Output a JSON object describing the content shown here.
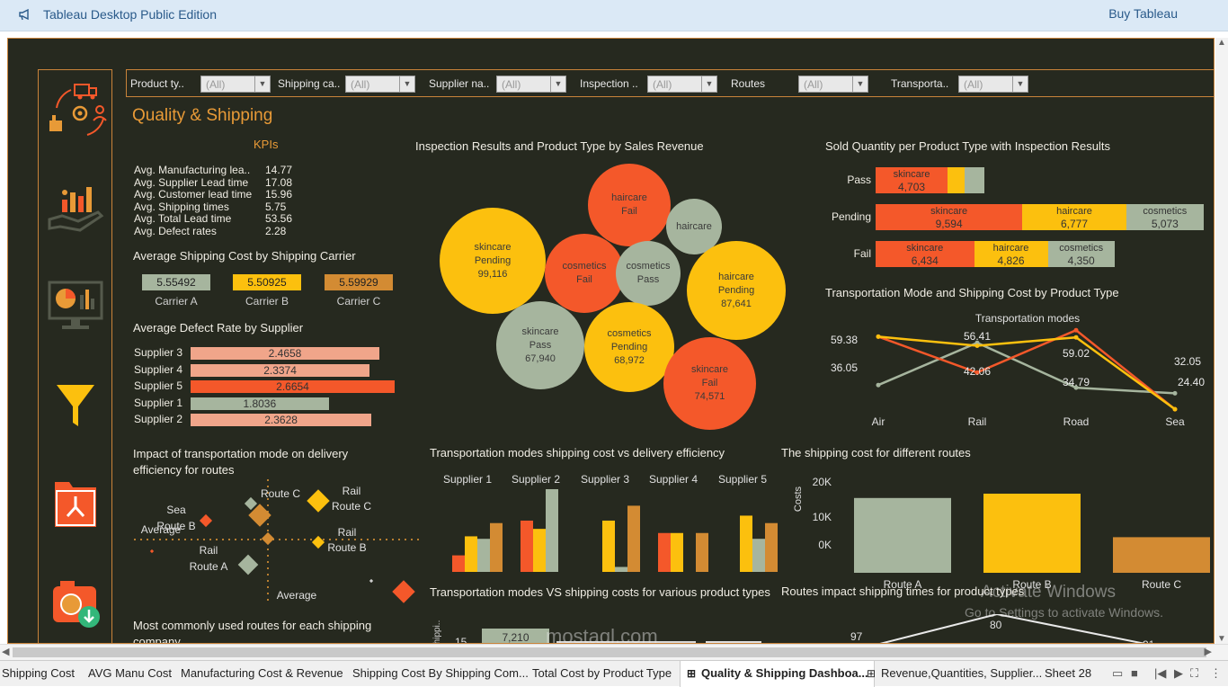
{
  "app": {
    "title": "Tableau Desktop Public Edition",
    "buy": "Buy Tableau"
  },
  "filters": [
    {
      "label": "Product ty..",
      "value": "(All)"
    },
    {
      "label": "Shipping ca..",
      "value": "(All)"
    },
    {
      "label": "Supplier na..",
      "value": "(All)"
    },
    {
      "label": "Inspection ..",
      "value": "(All)"
    },
    {
      "label": "Routes",
      "value": "(All)"
    },
    {
      "label": "Transporta..",
      "value": "(All)"
    }
  ],
  "dashboard": {
    "title": "Quality & Shipping",
    "kpis_header": "KPIs",
    "kpis": [
      {
        "label": "Avg. Manufacturing lea..",
        "value": "14.77"
      },
      {
        "label": "Avg. Supplier Lead time",
        "value": "17.08"
      },
      {
        "label": "Avg. Customer lead time",
        "value": "15.96"
      },
      {
        "label": "Avg. Shipping times",
        "value": "5.75"
      },
      {
        "label": "Avg. Total Lead time",
        "value": "53.56"
      },
      {
        "label": "Avg. Defect rates",
        "value": "2.28"
      }
    ]
  },
  "colors": {
    "bg": "#26291f",
    "orange": "#e89a37",
    "sage": "#a6b59e",
    "yellow": "#fcc00e",
    "red": "#f4582a",
    "tan": "#d38b33",
    "salmon": "#f0a58a"
  },
  "carrier_cost": {
    "title": "Average Shipping Cost by Shipping Carrier",
    "items": [
      {
        "name": "Carrier A",
        "value": "5.55492",
        "color": "#a6b59e"
      },
      {
        "name": "Carrier B",
        "value": "5.50925",
        "color": "#fcc00e"
      },
      {
        "name": "Carrier C",
        "value": "5.59929",
        "color": "#d38b33"
      }
    ]
  },
  "defect_rate": {
    "title": "Average Defect Rate by Supplier",
    "items": [
      {
        "name": "Supplier 3",
        "value": 2.4658,
        "label": "2.4658",
        "color": "#f0a58a"
      },
      {
        "name": "Supplier 4",
        "value": 2.3374,
        "label": "2.3374",
        "color": "#f0a58a"
      },
      {
        "name": "Supplier 5",
        "value": 2.6654,
        "label": "2.6654",
        "color": "#f4582a"
      },
      {
        "name": "Supplier 1",
        "value": 1.8036,
        "label": "1.8036",
        "color": "#a6b59e"
      },
      {
        "name": "Supplier 2",
        "value": 2.3628,
        "label": "2.3628",
        "color": "#f0a58a"
      }
    ]
  },
  "bubbles": {
    "title": "Inspection Results and Product Type by Sales Revenue",
    "items": [
      {
        "product": "haircare",
        "result": "Fail",
        "value": "",
        "color": "#f4582a"
      },
      {
        "product": "haircare",
        "result": "",
        "value": "",
        "color": "#a6b59e"
      },
      {
        "product": "skincare",
        "result": "Pending",
        "value": "99,116",
        "color": "#fcc00e"
      },
      {
        "product": "cosmetics",
        "result": "Fail",
        "value": "",
        "color": "#f4582a"
      },
      {
        "product": "cosmetics",
        "result": "Pass",
        "value": "",
        "color": "#a6b59e"
      },
      {
        "product": "haircare",
        "result": "Pending",
        "value": "87,641",
        "color": "#fcc00e"
      },
      {
        "product": "skincare",
        "result": "Pass",
        "value": "67,940",
        "color": "#a6b59e"
      },
      {
        "product": "cosmetics",
        "result": "Pending",
        "value": "68,972",
        "color": "#fcc00e"
      },
      {
        "product": "skincare",
        "result": "Fail",
        "value": "74,571",
        "color": "#f4582a"
      }
    ]
  },
  "sold_quantity": {
    "title": "Sold Quantity per Product Type with Inspection Results",
    "rows": [
      {
        "label": "Pass",
        "segments": [
          {
            "name": "skincare",
            "value": "4,703",
            "qty": 4703,
            "color": "#f4582a"
          },
          {
            "name": "",
            "value": "",
            "qty": 1100,
            "color": "#fcc00e"
          },
          {
            "name": "",
            "value": "",
            "qty": 1300,
            "color": "#a6b59e"
          }
        ]
      },
      {
        "label": "Pending",
        "segments": [
          {
            "name": "skincare",
            "value": "9,594",
            "qty": 9594,
            "color": "#f4582a"
          },
          {
            "name": "haircare",
            "value": "6,777",
            "qty": 6777,
            "color": "#fcc00e"
          },
          {
            "name": "cosmetics",
            "value": "5,073",
            "qty": 5073,
            "color": "#a6b59e"
          }
        ]
      },
      {
        "label": "Fail",
        "segments": [
          {
            "name": "skincare",
            "value": "6,434",
            "qty": 6434,
            "color": "#f4582a"
          },
          {
            "name": "haircare",
            "value": "4,826",
            "qty": 4826,
            "color": "#fcc00e"
          },
          {
            "name": "cosmetics",
            "value": "4,350",
            "qty": 4350,
            "color": "#a6b59e"
          }
        ]
      }
    ]
  },
  "chart_data": [
    {
      "type": "line",
      "title": "Transportation Mode and Shipping Cost by Product Type",
      "subtitle": "Transportation modes",
      "categories": [
        "Air",
        "Rail",
        "Road",
        "Sea"
      ],
      "series": [
        {
          "name": "",
          "color": "#a6b59e",
          "values": [
            36.05,
            56.41,
            34.79,
            32.05
          ]
        },
        {
          "name": "",
          "color": "#f4582a",
          "values": [
            59.38,
            42.06,
            62.5,
            24.4
          ]
        },
        {
          "name": "",
          "color": "#fcc00e",
          "values": [
            59.38,
            55.0,
            59.02,
            24.4
          ]
        }
      ],
      "labels": [
        "59.38",
        "36.05",
        "56.41",
        "42.06",
        "59.02",
        "34.79",
        "32.05",
        "24.40"
      ]
    },
    {
      "type": "scatter",
      "title": "Impact of transportation mode on delivery efficiency for routes",
      "annotations": [
        "Sea",
        "Route B",
        "Average",
        "Route C",
        "Rail",
        "Route C",
        "Rail",
        "Route B",
        "Rail",
        "Route A",
        "Average"
      ]
    },
    {
      "type": "bar",
      "title": "Transportation modes shipping cost vs delivery efficiency",
      "categories": [
        "Supplier 1",
        "Supplier 2",
        "Supplier 3",
        "Supplier 4",
        "Supplier 5"
      ],
      "series": [
        {
          "name": "",
          "color": "#f4582a",
          "values": [
            0.2,
            0.62,
            0.0,
            0.47,
            0.0
          ]
        },
        {
          "name": "",
          "color": "#fcc00e",
          "values": [
            0.43,
            0.52,
            0.62,
            0.47,
            0.68
          ]
        },
        {
          "name": "",
          "color": "#a6b59e",
          "values": [
            0.4,
            1.0,
            0.06,
            0.0,
            0.4
          ]
        },
        {
          "name": "",
          "color": "#d38b33",
          "values": [
            0.59,
            0.0,
            0.8,
            0.47,
            0.59
          ]
        }
      ]
    },
    {
      "type": "bar",
      "title": "The shipping cost for different routes",
      "ylabel": "Costs",
      "yticks": [
        "20K",
        "10K",
        "0K"
      ],
      "ylim": [
        0,
        22000
      ],
      "categories": [
        "Route A",
        "Route B",
        "Route C"
      ],
      "values": [
        20800,
        22000,
        9900
      ],
      "colors": [
        "#a6b59e",
        "#fcc00e",
        "#d38b33"
      ]
    }
  ],
  "lower": {
    "routes_title": "Most commonly used routes for each shipping company",
    "modes_costs_title": "Transportation modes VS shipping costs for various product types",
    "modes_costs_values": [
      "15",
      "7,210"
    ],
    "routes_times_title": "Routes impact shipping times for product types",
    "routes_times_values": [
      "97",
      "80",
      "31"
    ]
  },
  "watermark": {
    "line1": "Activate Windows",
    "line2": "Go to Settings to activate Windows.",
    "brand": "mostaql.com"
  },
  "tabs": [
    {
      "label": "Shipping Cost",
      "active": false,
      "icon": ""
    },
    {
      "label": "AVG Manu Cost",
      "active": false,
      "icon": ""
    },
    {
      "label": "Manufacturing Cost & Revenue",
      "active": false,
      "icon": ""
    },
    {
      "label": "Shipping Cost By Shipping Com...",
      "active": false,
      "icon": ""
    },
    {
      "label": "Total Cost by Product Type",
      "active": false,
      "icon": ""
    },
    {
      "label": "Quality & Shipping Dashboa...",
      "active": true,
      "icon": "dashboard-icon"
    },
    {
      "label": "Revenue,Quantities, Supplier...",
      "active": false,
      "icon": "dashboard-icon"
    },
    {
      "label": "Sheet 28",
      "active": false,
      "icon": ""
    }
  ]
}
